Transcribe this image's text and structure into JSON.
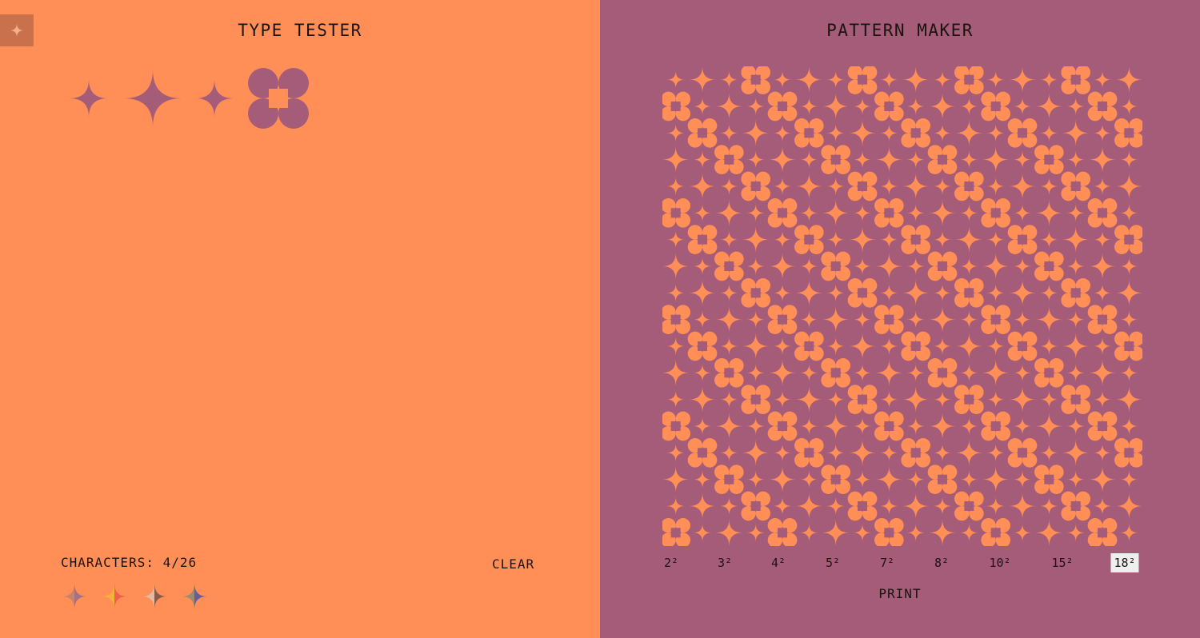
{
  "colors": {
    "orange": "#FF8F56",
    "mauve": "#A55C78",
    "logo_bg": "#C9704D",
    "text": "#1c1310",
    "active_bg": "#EFEFEF"
  },
  "logo": {
    "icon": "four-point-star-icon"
  },
  "type_tester": {
    "title": "TYPE TESTER",
    "characters": [
      "small-star",
      "large-star",
      "small-star",
      "flower-square"
    ],
    "counter_label": "CHARACTERS: 4/26",
    "clear_label": "CLEAR",
    "palettes": [
      {
        "name": "palette-1",
        "left": "#C8836F",
        "right": "#A77181"
      },
      {
        "name": "palette-2",
        "left": "#F2B33B",
        "right": "#F0604A"
      },
      {
        "name": "palette-3",
        "left": "#E6B9A3",
        "right": "#8B5A48"
      },
      {
        "name": "palette-4",
        "left": "#9B8C70",
        "right": "#6A5C9A"
      }
    ]
  },
  "pattern_maker": {
    "title": "PATTERN MAKER",
    "grid_size": 18,
    "sizes": [
      "2²",
      "3²",
      "4²",
      "5²",
      "7²",
      "8²",
      "10²",
      "15²",
      "18²"
    ],
    "selected_size": "18²",
    "print_label": "PRINT"
  }
}
